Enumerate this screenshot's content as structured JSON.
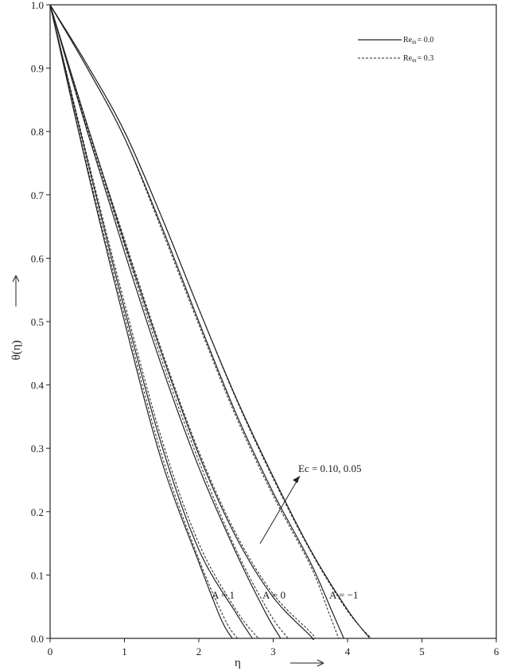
{
  "chart_data": {
    "type": "line",
    "xlabel": "η",
    "ylabel": "θ(η)",
    "xlim": [
      0,
      6
    ],
    "ylim": [
      0,
      1
    ],
    "x_ticks": [
      "0",
      "1",
      "2",
      "3",
      "4",
      "5",
      "6"
    ],
    "y_ticks": [
      "0.0",
      "0.1",
      "0.2",
      "0.3",
      "0.4",
      "0.5",
      "0.6",
      "0.7",
      "0.8",
      "0.9",
      "1.0"
    ],
    "grid": false,
    "legend_position": "top-right",
    "legend": [
      {
        "label": "Re",
        "sub": "m",
        "suffix": "= 0.0",
        "style": "solid"
      },
      {
        "label": "Re",
        "sub": "m",
        "suffix": "= 0.3",
        "style": "dashed"
      }
    ],
    "annotations": {
      "ec": "Ec = 0.10, 0.05",
      "a1": "A = 1",
      "a0": "A = 0",
      "am1": "A = −1"
    },
    "series": [
      {
        "group": "A = 1",
        "style": "solid",
        "width": 1.2,
        "points": [
          [
            0,
            1
          ],
          [
            0.5,
            0.74
          ],
          [
            1,
            0.5
          ],
          [
            1.5,
            0.28
          ],
          [
            2,
            0.12
          ],
          [
            2.3,
            0.03
          ],
          [
            2.45,
            0
          ]
        ]
      },
      {
        "group": "A = 1",
        "style": "dashed",
        "width": 1.0,
        "points": [
          [
            0,
            1
          ],
          [
            0.5,
            0.745
          ],
          [
            1,
            0.51
          ],
          [
            1.5,
            0.29
          ],
          [
            2,
            0.125
          ],
          [
            2.35,
            0.03
          ],
          [
            2.52,
            0
          ]
        ]
      },
      {
        "group": "A = 1",
        "style": "solid",
        "width": 1.2,
        "points": [
          [
            0,
            1
          ],
          [
            0.5,
            0.755
          ],
          [
            1,
            0.52
          ],
          [
            1.5,
            0.305
          ],
          [
            2,
            0.14
          ],
          [
            2.5,
            0.04
          ],
          [
            2.72,
            0
          ]
        ]
      },
      {
        "group": "A = 1",
        "style": "dashed",
        "width": 1.0,
        "points": [
          [
            0,
            1
          ],
          [
            0.5,
            0.76
          ],
          [
            1,
            0.53
          ],
          [
            1.5,
            0.315
          ],
          [
            2,
            0.15
          ],
          [
            2.5,
            0.045
          ],
          [
            2.8,
            0
          ]
        ]
      },
      {
        "group": "A = 0",
        "style": "solid",
        "width": 1.2,
        "points": [
          [
            0,
            1
          ],
          [
            0.5,
            0.8
          ],
          [
            1,
            0.61
          ],
          [
            1.5,
            0.43
          ],
          [
            2,
            0.27
          ],
          [
            2.5,
            0.135
          ],
          [
            2.9,
            0.04
          ],
          [
            3.1,
            0
          ]
        ]
      },
      {
        "group": "A = 0",
        "style": "dashed",
        "width": 1.0,
        "points": [
          [
            0,
            1
          ],
          [
            0.5,
            0.805
          ],
          [
            1,
            0.62
          ],
          [
            1.5,
            0.44
          ],
          [
            2,
            0.28
          ],
          [
            2.5,
            0.14
          ],
          [
            2.95,
            0.04
          ],
          [
            3.2,
            0
          ]
        ]
      },
      {
        "group": "A = 0",
        "style": "solid",
        "width": 1.2,
        "points": [
          [
            0,
            1
          ],
          [
            0.5,
            0.81
          ],
          [
            1,
            0.625
          ],
          [
            1.5,
            0.45
          ],
          [
            2,
            0.29
          ],
          [
            2.5,
            0.16
          ],
          [
            3,
            0.065
          ],
          [
            3.5,
            0.004
          ],
          [
            3.52,
            0
          ]
        ]
      },
      {
        "group": "A = 0",
        "style": "dashed",
        "width": 1.0,
        "points": [
          [
            0,
            1
          ],
          [
            0.5,
            0.81
          ],
          [
            1,
            0.63
          ],
          [
            1.5,
            0.455
          ],
          [
            2,
            0.295
          ],
          [
            2.5,
            0.165
          ],
          [
            3,
            0.07
          ],
          [
            3.5,
            0.01
          ],
          [
            3.56,
            0
          ]
        ]
      },
      {
        "group": "A = −1",
        "style": "solid",
        "width": 1.2,
        "points": [
          [
            0,
            1
          ],
          [
            0.5,
            0.9
          ],
          [
            1,
            0.79
          ],
          [
            1.5,
            0.65
          ],
          [
            2,
            0.5
          ],
          [
            2.5,
            0.355
          ],
          [
            3,
            0.23
          ],
          [
            3.5,
            0.12
          ],
          [
            3.8,
            0.04
          ],
          [
            3.95,
            0
          ]
        ]
      },
      {
        "group": "A = −1",
        "style": "dashed",
        "width": 1.0,
        "points": [
          [
            0,
            1
          ],
          [
            0.5,
            0.9
          ],
          [
            1,
            0.79
          ],
          [
            1.5,
            0.645
          ],
          [
            2,
            0.495
          ],
          [
            2.5,
            0.35
          ],
          [
            3,
            0.225
          ],
          [
            3.5,
            0.115
          ],
          [
            3.75,
            0.04
          ],
          [
            3.88,
            0
          ]
        ]
      },
      {
        "group": "A = −1",
        "style": "solid",
        "width": 1.2,
        "points": [
          [
            0,
            1
          ],
          [
            0.5,
            0.905
          ],
          [
            1,
            0.8
          ],
          [
            1.5,
            0.665
          ],
          [
            2,
            0.52
          ],
          [
            2.5,
            0.38
          ],
          [
            3,
            0.255
          ],
          [
            3.5,
            0.14
          ],
          [
            4,
            0.045
          ],
          [
            4.3,
            0
          ]
        ]
      },
      {
        "group": "A = −1",
        "style": "dashed",
        "width": 1.0,
        "points": [
          [
            0,
            1
          ],
          [
            0.5,
            0.905
          ],
          [
            1,
            0.8
          ],
          [
            1.5,
            0.665
          ],
          [
            2,
            0.52
          ],
          [
            2.5,
            0.378
          ],
          [
            3,
            0.252
          ],
          [
            3.5,
            0.138
          ],
          [
            4,
            0.043
          ],
          [
            4.32,
            0
          ]
        ]
      }
    ]
  }
}
